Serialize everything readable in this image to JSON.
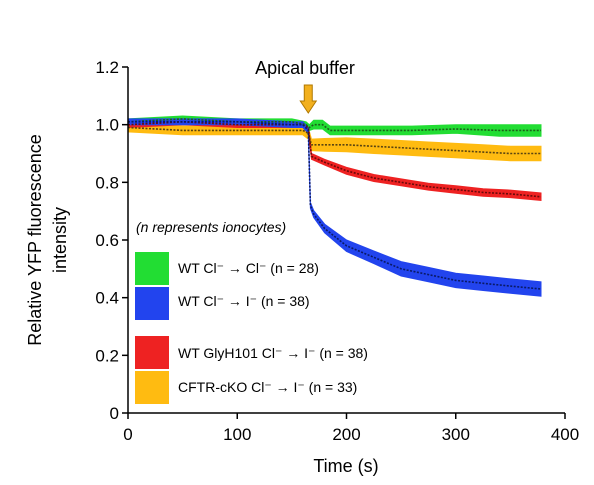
{
  "chart_data": {
    "type": "line",
    "xlabel": "Time (s)",
    "ylabel_lines": [
      "Relative YFP fluorescence",
      "intensity"
    ],
    "xlim": [
      0,
      400
    ],
    "ylim": [
      0,
      1.2
    ],
    "xticks": [
      0,
      100,
      200,
      300,
      400
    ],
    "yticks": [
      0,
      0.2,
      0.4,
      0.6,
      0.8,
      1.0,
      1.2
    ],
    "xtick_labels": [
      "0",
      "100",
      "200",
      "300",
      "400"
    ],
    "ytick_labels": [
      "0",
      "0.2",
      "0.4",
      "0.6",
      "0.8",
      "1.0",
      "1.2"
    ],
    "annotation": {
      "text": "Apical buffer",
      "x": 165
    },
    "legend_note": "(n represents ionocytes)",
    "legend_placement": "bottom-left",
    "series": [
      {
        "name": "WT Cl⁻ → Cl⁻ (n = 28)",
        "color": "#22dd33",
        "line_color": "#1a5f1a",
        "x": [
          0,
          50,
          100,
          150,
          163,
          166,
          170,
          178,
          185,
          195,
          220,
          260,
          300,
          340,
          378
        ],
        "y": [
          1.01,
          1.02,
          1.01,
          1.01,
          1.0,
          0.99,
          1.0,
          1.0,
          0.98,
          0.98,
          0.98,
          0.98,
          0.985,
          0.98,
          0.98
        ],
        "err": [
          0.01,
          0.01,
          0.01,
          0.01,
          0.01,
          0.01,
          0.015,
          0.015,
          0.015,
          0.015,
          0.015,
          0.015,
          0.015,
          0.02,
          0.02
        ]
      },
      {
        "name": "WT Cl⁻ → I⁻ (n = 38)",
        "color": "#2244ee",
        "line_color": "#0a1a66",
        "x": [
          0,
          50,
          100,
          150,
          160,
          165,
          167,
          170,
          180,
          200,
          225,
          250,
          275,
          300,
          325,
          350,
          378
        ],
        "y": [
          1.01,
          1.01,
          1.01,
          1.0,
          1.0,
          0.98,
          0.72,
          0.69,
          0.64,
          0.58,
          0.54,
          0.5,
          0.48,
          0.46,
          0.45,
          0.44,
          0.43
        ],
        "err": [
          0.01,
          0.01,
          0.01,
          0.01,
          0.01,
          0.01,
          0.01,
          0.012,
          0.015,
          0.02,
          0.022,
          0.025,
          0.025,
          0.025,
          0.025,
          0.025,
          0.025
        ]
      },
      {
        "name": "WT GlyH101 Cl⁻ → I⁻ (n = 38)",
        "color": "#ee2222",
        "line_color": "#6a0a0a",
        "x": [
          0,
          50,
          100,
          150,
          160,
          165,
          168,
          180,
          200,
          225,
          250,
          275,
          300,
          325,
          350,
          378
        ],
        "y": [
          1.0,
          1.01,
          1.0,
          1.0,
          1.0,
          0.99,
          0.89,
          0.87,
          0.84,
          0.815,
          0.8,
          0.785,
          0.775,
          0.765,
          0.76,
          0.75
        ],
        "err": [
          0.01,
          0.01,
          0.01,
          0.01,
          0.01,
          0.01,
          0.01,
          0.01,
          0.012,
          0.012,
          0.012,
          0.012,
          0.013,
          0.013,
          0.013,
          0.013
        ]
      },
      {
        "name": "CFTR-cKO Cl⁻ → I⁻ (n = 33)",
        "color": "#ffbb11",
        "line_color": "#5a4410",
        "x": [
          0,
          50,
          100,
          150,
          160,
          165,
          168,
          180,
          200,
          225,
          250,
          275,
          300,
          325,
          350,
          378
        ],
        "y": [
          0.99,
          0.98,
          0.98,
          0.98,
          0.98,
          0.97,
          0.93,
          0.93,
          0.93,
          0.925,
          0.92,
          0.915,
          0.91,
          0.905,
          0.9,
          0.9
        ],
        "err": [
          0.015,
          0.015,
          0.015,
          0.015,
          0.015,
          0.02,
          0.02,
          0.022,
          0.024,
          0.025,
          0.025,
          0.025,
          0.025,
          0.025,
          0.025,
          0.025
        ]
      }
    ]
  },
  "colors": {
    "arrow_fill": "#f2b01e",
    "arrow_stroke": "#b07800"
  }
}
